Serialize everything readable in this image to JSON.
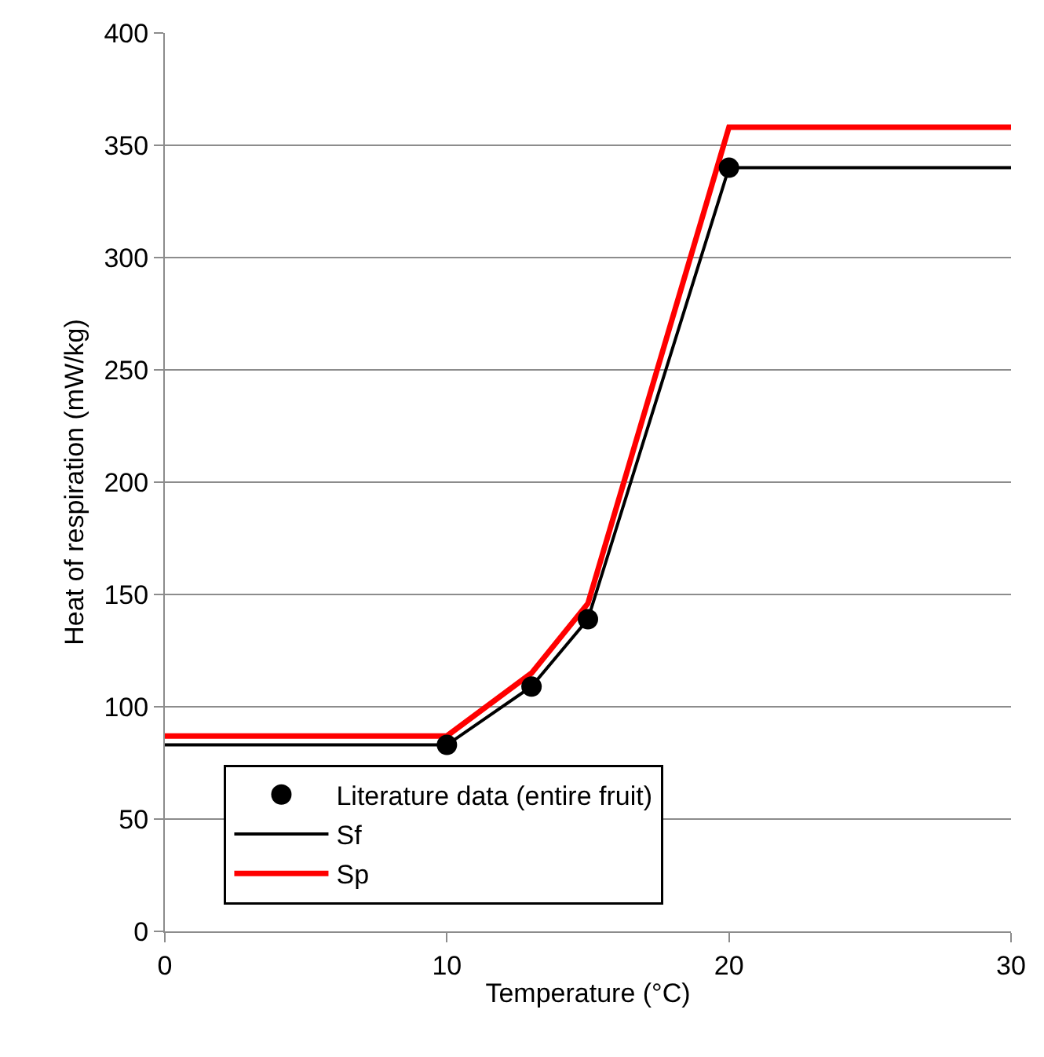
{
  "chart_data": {
    "type": "line",
    "xlabel": "Temperature (°C)",
    "ylabel": "Heat of respiration (mW/kg)",
    "xlim": [
      0,
      30
    ],
    "xticks": [
      0,
      10,
      20,
      30
    ],
    "ylim": [
      0,
      400
    ],
    "yticks": [
      0,
      50,
      100,
      150,
      200,
      250,
      300,
      350,
      400
    ],
    "grid": "y",
    "legend": "bottom left",
    "series": [
      {
        "name": "Literature data (entire fruit)",
        "type": "scatter",
        "marker": "circle",
        "color": "#000000",
        "x": [
          10,
          13,
          15,
          20
        ],
        "values": [
          83,
          109,
          139,
          340
        ]
      },
      {
        "name": "Sf",
        "color": "#000000",
        "x": [
          0,
          10,
          13,
          15,
          20,
          30
        ],
        "values": [
          83,
          83,
          109,
          139,
          340,
          340
        ]
      },
      {
        "name": "Sp",
        "color": "#ff0000",
        "x": [
          0,
          10,
          13,
          15,
          20,
          30
        ],
        "values": [
          87,
          87,
          115,
          146,
          358,
          358
        ]
      }
    ]
  }
}
